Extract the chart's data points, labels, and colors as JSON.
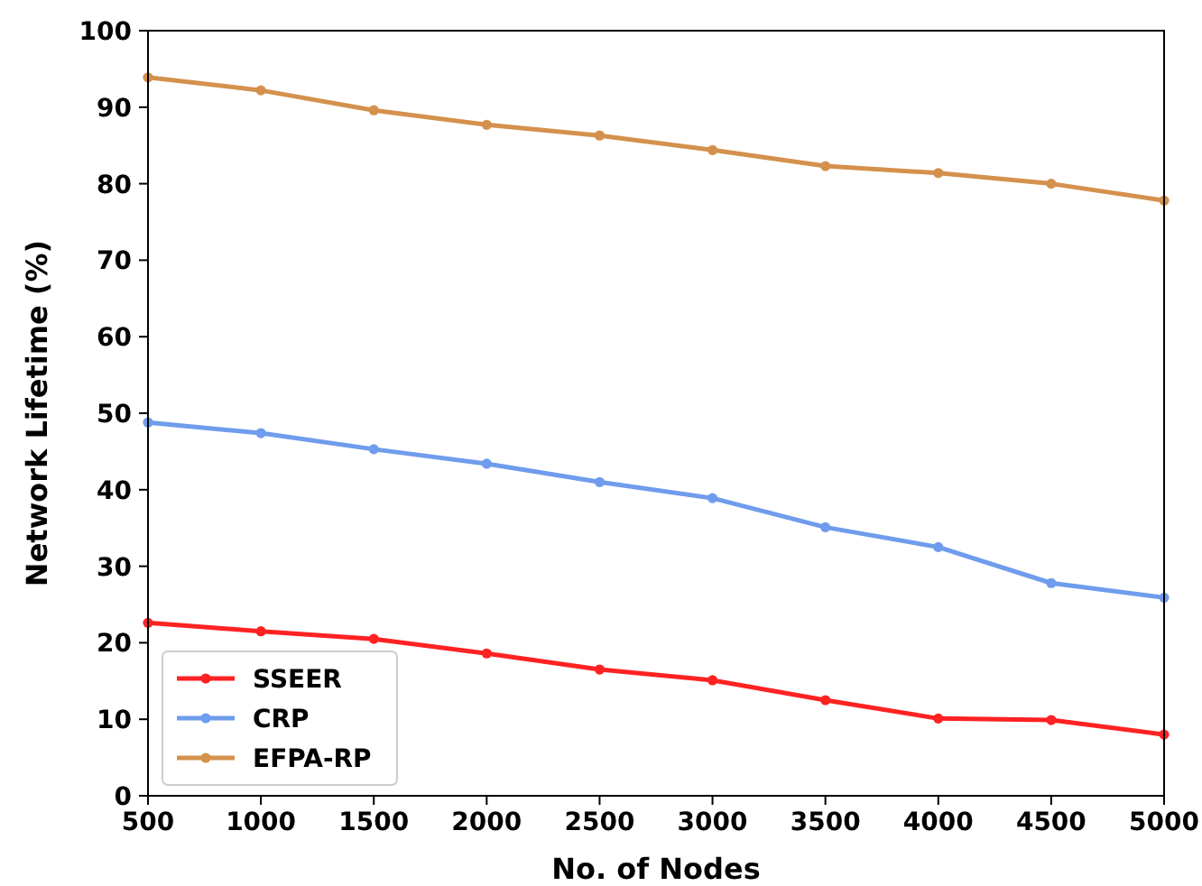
{
  "chart_data": {
    "type": "line",
    "xlabel": "No. of Nodes",
    "ylabel": "Network Lifetime (%)",
    "x": [
      500,
      1000,
      1500,
      2000,
      2500,
      3000,
      3500,
      4000,
      4500,
      5000
    ],
    "series": [
      {
        "name": "SSEER",
        "color": "#ff2222",
        "values": [
          22.6,
          21.5,
          20.5,
          18.6,
          16.5,
          15.1,
          12.5,
          10.1,
          9.9,
          8.0
        ]
      },
      {
        "name": "CRP",
        "color": "#6f9cec",
        "values": [
          48.8,
          47.4,
          45.3,
          43.4,
          41.0,
          38.9,
          35.1,
          32.5,
          27.8,
          25.9
        ]
      },
      {
        "name": "EFPA-RP",
        "color": "#d4914d",
        "values": [
          93.9,
          92.2,
          89.6,
          87.7,
          86.3,
          84.4,
          82.3,
          81.4,
          80.0,
          77.8
        ]
      }
    ],
    "xlim": [
      500,
      5000
    ],
    "xticks": [
      500,
      1000,
      1500,
      2000,
      2500,
      3000,
      3500,
      4000,
      4500,
      5000
    ],
    "ylim": [
      0,
      100
    ],
    "yticks": [
      0,
      10,
      20,
      30,
      40,
      50,
      60,
      70,
      80,
      90,
      100
    ],
    "grid": false,
    "legend": "bottom left",
    "marker": "circle",
    "line_style": "solid"
  }
}
